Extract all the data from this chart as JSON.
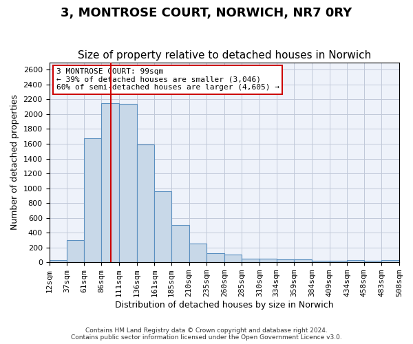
{
  "title_line1": "3, MONTROSE COURT, NORWICH, NR7 0RY",
  "title_line2": "Size of property relative to detached houses in Norwich",
  "xlabel": "Distribution of detached houses by size in Norwich",
  "ylabel": "Number of detached properties",
  "bar_color": "#c8d8e8",
  "bar_edge_color": "#5a8fc0",
  "bar_edge_width": 0.8,
  "grid_color": "#c0c8d8",
  "background_color": "#eef2fa",
  "vline_color": "#cc0000",
  "vline_x": 99,
  "bin_edges": [
    12,
    37,
    61,
    86,
    111,
    136,
    161,
    185,
    210,
    235,
    260,
    285,
    310,
    334,
    359,
    384,
    409,
    434,
    458,
    483,
    508
  ],
  "bin_labels": [
    "12sqm",
    "37sqm",
    "61sqm",
    "86sqm",
    "111sqm",
    "136sqm",
    "161sqm",
    "185sqm",
    "210sqm",
    "235sqm",
    "260sqm",
    "285sqm",
    "310sqm",
    "334sqm",
    "359sqm",
    "384sqm",
    "409sqm",
    "434sqm",
    "458sqm",
    "483sqm",
    "508sqm"
  ],
  "bar_heights": [
    30,
    300,
    1670,
    2150,
    2140,
    1590,
    960,
    500,
    250,
    120,
    100,
    50,
    50,
    35,
    35,
    20,
    20,
    30,
    20,
    30
  ],
  "ylim": [
    0,
    2700
  ],
  "yticks": [
    0,
    200,
    400,
    600,
    800,
    1000,
    1200,
    1400,
    1600,
    1800,
    2000,
    2200,
    2400,
    2600
  ],
  "annotation_title": "3 MONTROSE COURT: 99sqm",
  "annotation_line1": "← 39% of detached houses are smaller (3,046)",
  "annotation_line2": "60% of semi-detached houses are larger (4,605) →",
  "annotation_box_color": "#ffffff",
  "annotation_border_color": "#cc0000",
  "footer_line1": "Contains HM Land Registry data © Crown copyright and database right 2024.",
  "footer_line2": "Contains public sector information licensed under the Open Government Licence v3.0.",
  "title_fontsize": 13,
  "subtitle_fontsize": 11,
  "axis_label_fontsize": 9,
  "tick_fontsize": 8,
  "annotation_fontsize": 8
}
